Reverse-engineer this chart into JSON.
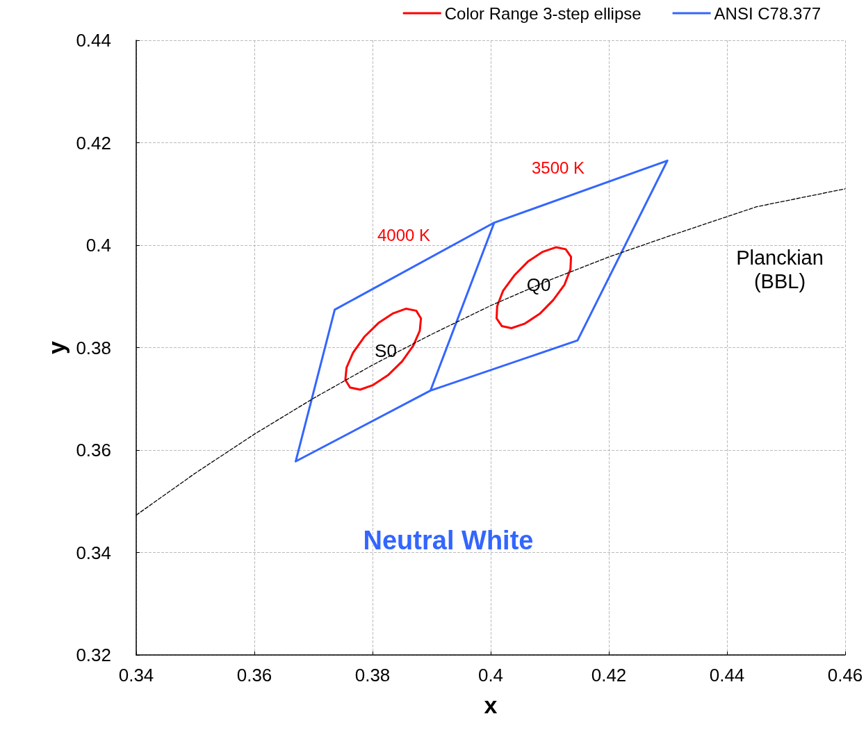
{
  "chart_data": {
    "type": "line",
    "xlabel": "x",
    "ylabel": "y",
    "xlim": [
      0.34,
      0.46
    ],
    "ylim": [
      0.32,
      0.44
    ],
    "xticks": [
      0.34,
      0.36,
      0.38,
      0.4,
      0.42,
      0.44,
      0.46
    ],
    "yticks": [
      0.32,
      0.34,
      0.36,
      0.38,
      0.4,
      0.42,
      0.44
    ],
    "grid": true,
    "legend": "top right",
    "marker": "none",
    "series": [
      {
        "name": "Color Range 3-step ellipse",
        "color": "#ff0000",
        "x": [
          0.3754,
          0.3762,
          0.3779,
          0.3801,
          0.3826,
          0.385,
          0.3869,
          0.388,
          0.3882,
          null,
          0.3754,
          0.3756,
          0.3767,
          0.3786,
          0.381,
          0.3835,
          0.3857,
          0.3874,
          0.3882
        ],
        "values": [
          0.3737,
          0.3722,
          0.3718,
          0.3727,
          0.3746,
          0.3773,
          0.3804,
          0.3833,
          0.3857,
          null,
          0.3737,
          0.3761,
          0.379,
          0.3821,
          0.3848,
          0.3867,
          0.3876,
          0.3872,
          0.3857
        ]
      },
      {
        "color": "#ff0000",
        "x": [
          0.401,
          0.4019,
          0.4035,
          0.4058,
          0.4083,
          0.4106,
          0.4125,
          0.4135,
          0.4136,
          null,
          0.401,
          0.4011,
          0.4021,
          0.404,
          0.4063,
          0.4088,
          0.4111,
          0.4127,
          0.4136
        ],
        "values": [
          0.3857,
          0.3842,
          0.3838,
          0.3847,
          0.3866,
          0.3893,
          0.3923,
          0.3953,
          0.3977,
          null,
          0.3857,
          0.3881,
          0.3911,
          0.3941,
          0.3968,
          0.3987,
          0.3996,
          0.3992,
          0.3977
        ]
      },
      {
        "name": "ANSI C78.377",
        "color": "#3366ff",
        "x": [
          0.367,
          0.3736,
          0.4006,
          null,
          0.367,
          0.3898,
          null,
          0.3898,
          0.4006,
          0.4299,
          null,
          0.3898,
          0.4147,
          0.4299
        ],
        "values": [
          0.3578,
          0.3874,
          0.4044,
          null,
          0.3578,
          0.3716,
          null,
          0.3716,
          0.4044,
          0.4165,
          null,
          0.3716,
          0.3814,
          0.4165
        ]
      },
      {
        "color": "#000000",
        "line_style": "dashed",
        "x": [
          0.34,
          0.35,
          0.36,
          0.37,
          0.38,
          0.39,
          0.4,
          0.41,
          0.42,
          0.43,
          0.445,
          0.46
        ],
        "values": [
          0.3473,
          0.3555,
          0.3631,
          0.3701,
          0.3766,
          0.3826,
          0.3882,
          0.3932,
          0.3977,
          0.4017,
          0.4075,
          0.411
        ]
      }
    ],
    "annotations": [
      "3500 K",
      "4000 K",
      "S0",
      "Q0",
      "Planckian\n(BBL)",
      "Neutral White"
    ]
  }
}
